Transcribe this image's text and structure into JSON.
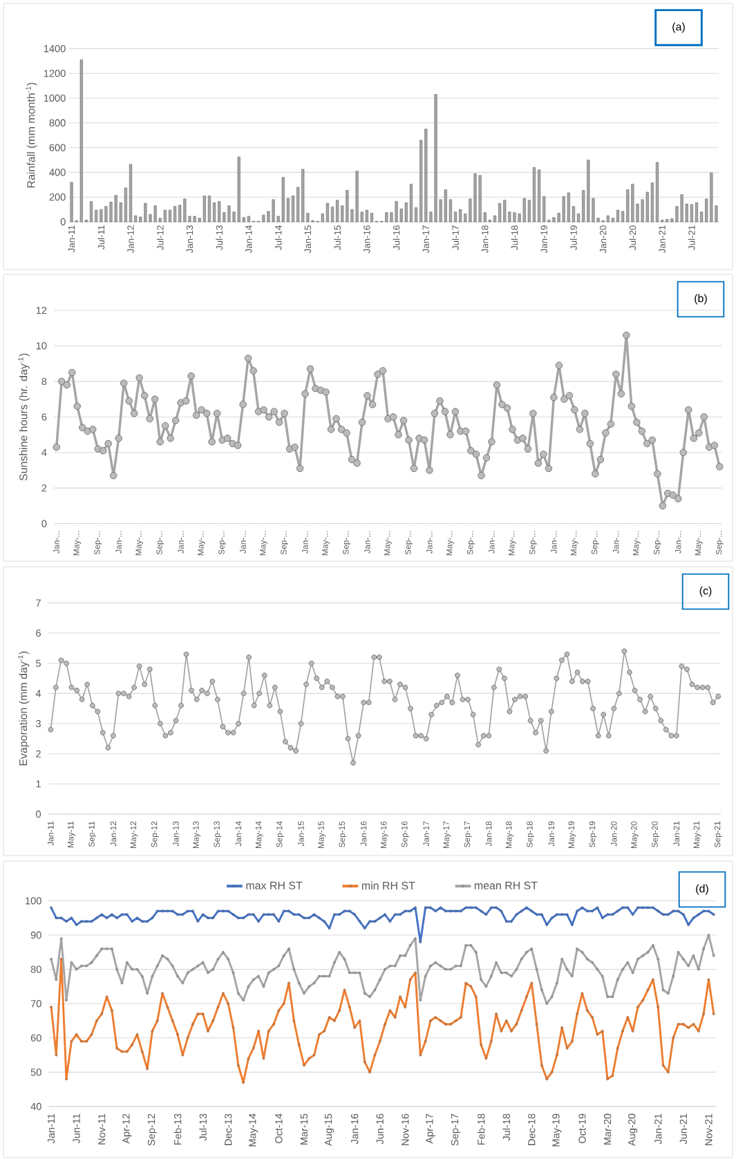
{
  "chart_data": [
    {
      "type": "bar",
      "ylabel": "Rainfall (mm month$^{-1}$)",
      "annotations": [
        "(a)"
      ],
      "grid": "y",
      "color": "#a5a5a5",
      "ylim": [
        0,
        1400
      ],
      "yticks": [
        0,
        200,
        400,
        600,
        800,
        1000,
        1200,
        1400
      ],
      "categories": [
        "Jan-11",
        null,
        null,
        null,
        null,
        null,
        "Jul-11",
        null,
        null,
        null,
        null,
        null,
        "Jan-12",
        null,
        null,
        null,
        null,
        null,
        "Jul-12",
        null,
        null,
        null,
        null,
        null,
        "Jan-13",
        null,
        null,
        null,
        null,
        null,
        "Jul-13",
        null,
        null,
        null,
        null,
        null,
        "Jan-14",
        null,
        null,
        null,
        null,
        null,
        "Jul-14",
        null,
        null,
        null,
        null,
        null,
        "Jan-15",
        null,
        null,
        null,
        null,
        null,
        "Jul-15",
        null,
        null,
        null,
        null,
        null,
        "Jan-16",
        null,
        null,
        null,
        null,
        null,
        "Jul-16",
        null,
        null,
        null,
        null,
        null,
        "Jan-17",
        null,
        null,
        null,
        null,
        null,
        "Jul-17",
        null,
        null,
        null,
        null,
        null,
        "Jan-18",
        null,
        null,
        null,
        null,
        null,
        "Jul-18",
        null,
        null,
        null,
        null,
        null,
        "Jan-19",
        null,
        null,
        null,
        null,
        null,
        "Jul-19",
        null,
        null,
        null,
        null,
        null,
        "Jan-20",
        null,
        null,
        null,
        null,
        null,
        "Jul-20",
        null,
        null,
        null,
        null,
        null,
        "Jan-21",
        null,
        null,
        null,
        null,
        null,
        "Jul-21",
        null,
        null,
        null,
        null,
        null
      ],
      "values": [
        320,
        10,
        1310,
        15,
        165,
        95,
        100,
        125,
        160,
        215,
        155,
        275,
        465,
        50,
        40,
        150,
        60,
        130,
        30,
        95,
        95,
        125,
        135,
        185,
        45,
        45,
        30,
        210,
        210,
        155,
        165,
        75,
        130,
        80,
        525,
        35,
        45,
        5,
        5,
        55,
        85,
        180,
        45,
        360,
        190,
        210,
        280,
        425,
        70,
        10,
        5,
        65,
        150,
        120,
        175,
        130,
        255,
        100,
        410,
        80,
        95,
        70,
        5,
        5,
        75,
        75,
        165,
        105,
        155,
        305,
        115,
        660,
        750,
        80,
        1030,
        180,
        260,
        180,
        80,
        100,
        65,
        185,
        390,
        375,
        75,
        15,
        50,
        150,
        175,
        80,
        75,
        65,
        190,
        175,
        440,
        420,
        205,
        15,
        35,
        70,
        205,
        235,
        125,
        65,
        255,
        500,
        190,
        30,
        10,
        50,
        30,
        95,
        85,
        260,
        305,
        145,
        180,
        240,
        315,
        480,
        15,
        20,
        25,
        125,
        220,
        145,
        140,
        155,
        80,
        185,
        395,
        130
      ]
    },
    {
      "type": "line",
      "ylabel": "Sunshine hours (hr. day$^{-1}$)",
      "annotations": [
        "(b)"
      ],
      "grid": "y",
      "marker": "circle",
      "color": "#a5a5a5",
      "ylim": [
        0,
        12
      ],
      "yticks": [
        0,
        2,
        4,
        6,
        8,
        10,
        12
      ],
      "categories": [
        "Jan-...",
        null,
        null,
        null,
        "May-...",
        null,
        null,
        null,
        "Sep-...",
        null,
        null,
        null,
        "Jan-...",
        null,
        null,
        null,
        "May-...",
        null,
        null,
        null,
        "Sep-...",
        null,
        null,
        null,
        "Jan-...",
        null,
        null,
        null,
        "May-...",
        null,
        null,
        null,
        "Sep-...",
        null,
        null,
        null,
        "Jan-...",
        null,
        null,
        null,
        "May-...",
        null,
        null,
        null,
        "Sep-...",
        null,
        null,
        null,
        "Jan-...",
        null,
        null,
        null,
        "May-...",
        null,
        null,
        null,
        "Sep-...",
        null,
        null,
        null,
        "Jan-...",
        null,
        null,
        null,
        "May-...",
        null,
        null,
        null,
        "Sep-...",
        null,
        null,
        null,
        "Jan-...",
        null,
        null,
        null,
        "May-...",
        null,
        null,
        null,
        "Sep-...",
        null,
        null,
        null,
        "Jan-...",
        null,
        null,
        null,
        "May-...",
        null,
        null,
        null,
        "Sep-...",
        null,
        null,
        null,
        "Jan-...",
        null,
        null,
        null,
        "May-...",
        null,
        null,
        null,
        "Sep-...",
        null,
        null,
        null,
        "Jan-...",
        null,
        null,
        null,
        "May-...",
        null,
        null,
        null,
        "Sep-...",
        null,
        null,
        null,
        "Jan-...",
        null,
        null,
        null,
        "May-...",
        null,
        null,
        null,
        "Sep-..."
      ],
      "values": [
        4.3,
        8.0,
        7.8,
        8.5,
        6.6,
        5.4,
        5.2,
        5.3,
        4.2,
        4.1,
        4.5,
        2.7,
        4.8,
        7.9,
        6.9,
        6.2,
        8.2,
        7.2,
        5.9,
        7.0,
        4.6,
        5.5,
        4.8,
        5.8,
        6.8,
        6.9,
        8.3,
        6.1,
        6.4,
        6.2,
        4.6,
        6.2,
        4.7,
        4.8,
        4.5,
        4.4,
        6.7,
        9.3,
        8.6,
        6.3,
        6.4,
        6.0,
        6.3,
        5.7,
        6.2,
        4.2,
        4.3,
        3.1,
        7.3,
        8.7,
        7.6,
        7.5,
        7.4,
        5.3,
        5.9,
        5.3,
        5.1,
        3.6,
        3.4,
        5.7,
        7.2,
        6.7,
        8.4,
        8.6,
        5.9,
        6.0,
        5.0,
        5.8,
        4.7,
        3.1,
        4.8,
        4.7,
        3.0,
        6.2,
        6.9,
        6.3,
        5.0,
        6.3,
        5.2,
        5.2,
        4.1,
        3.9,
        2.7,
        3.7,
        4.6,
        7.8,
        6.7,
        6.5,
        5.3,
        4.7,
        4.8,
        4.2,
        6.2,
        3.4,
        3.9,
        3.1,
        7.1,
        8.9,
        7.0,
        7.2,
        6.4,
        5.3,
        6.2,
        4.5,
        2.8,
        3.6,
        5.1,
        5.6,
        8.4,
        7.3,
        10.6,
        6.6,
        5.7,
        5.2,
        4.5,
        4.7,
        2.8,
        1.0,
        1.7,
        1.6,
        1.4,
        4.0,
        6.4,
        4.8,
        5.1,
        6.0,
        4.3,
        4.4,
        3.2
      ]
    },
    {
      "type": "line",
      "ylabel": "Evaporation (mm day$^{-1}$)",
      "annotations": [
        "(c)"
      ],
      "grid": "y",
      "marker": "circle",
      "color": "#a5a5a5",
      "ylim": [
        0,
        7
      ],
      "yticks": [
        0,
        1,
        2,
        3,
        4,
        5,
        6,
        7
      ],
      "categories": [
        "Jan-11",
        null,
        null,
        null,
        "May-11",
        null,
        null,
        null,
        "Sep-11",
        null,
        null,
        null,
        "Jan-12",
        null,
        null,
        null,
        "May-12",
        null,
        null,
        null,
        "Sep-12",
        null,
        null,
        null,
        "Jan-13",
        null,
        null,
        null,
        "May-13",
        null,
        null,
        null,
        "Sep-13",
        null,
        null,
        null,
        "Jan-14",
        null,
        null,
        null,
        "May-14",
        null,
        null,
        null,
        "Sep-14",
        null,
        null,
        null,
        "Jan-15",
        null,
        null,
        null,
        "May-15",
        null,
        null,
        null,
        "Sep-15",
        null,
        null,
        null,
        "Jan-16",
        null,
        null,
        null,
        "May-16",
        null,
        null,
        null,
        "Sep-16",
        null,
        null,
        null,
        "Jan-17",
        null,
        null,
        null,
        "May-17",
        null,
        null,
        null,
        "Sep-17",
        null,
        null,
        null,
        "Jan-18",
        null,
        null,
        null,
        "May-18",
        null,
        null,
        null,
        "Sep-18",
        null,
        null,
        null,
        "Jan-19",
        null,
        null,
        null,
        "May-19",
        null,
        null,
        null,
        "Sep-19",
        null,
        null,
        null,
        "Jan-20",
        null,
        null,
        null,
        "May-20",
        null,
        null,
        null,
        "Sep-20",
        null,
        null,
        null,
        "Jan-21",
        null,
        null,
        null,
        "May-21",
        null,
        null,
        null,
        "Sep-21"
      ],
      "values": [
        2.8,
        4.2,
        5.1,
        5.0,
        4.2,
        4.1,
        3.8,
        4.3,
        3.6,
        3.4,
        2.7,
        2.2,
        2.6,
        4.0,
        4.0,
        3.9,
        4.2,
        4.9,
        4.3,
        4.8,
        3.6,
        3.0,
        2.6,
        2.7,
        3.1,
        3.6,
        5.3,
        4.1,
        3.8,
        4.1,
        4.0,
        4.4,
        3.8,
        2.9,
        2.7,
        2.7,
        3.0,
        4.0,
        5.2,
        3.6,
        4.0,
        4.6,
        3.6,
        4.2,
        3.4,
        2.4,
        2.2,
        2.1,
        3.0,
        4.3,
        5.0,
        4.5,
        4.2,
        4.4,
        4.2,
        3.9,
        3.9,
        2.5,
        1.7,
        2.6,
        3.7,
        3.7,
        5.2,
        5.2,
        4.4,
        4.4,
        3.8,
        4.3,
        4.2,
        3.5,
        2.6,
        2.6,
        2.5,
        3.3,
        3.6,
        3.7,
        3.9,
        3.7,
        4.6,
        3.8,
        3.8,
        3.3,
        2.3,
        2.6,
        2.6,
        4.2,
        4.8,
        4.5,
        3.4,
        3.8,
        3.9,
        3.9,
        3.1,
        2.7,
        3.1,
        2.1,
        3.4,
        4.5,
        5.1,
        5.3,
        4.4,
        4.7,
        4.4,
        4.4,
        3.5,
        2.6,
        3.3,
        2.6,
        3.5,
        4.0,
        5.4,
        4.7,
        4.1,
        3.8,
        3.4,
        3.9,
        3.5,
        3.1,
        2.8,
        2.6,
        2.6,
        4.9,
        4.8,
        4.3,
        4.2,
        4.2,
        4.2,
        3.7,
        3.9
      ]
    },
    {
      "type": "line",
      "annotations": [
        "(d)"
      ],
      "grid": "y",
      "marker": "circle",
      "legend": "top",
      "ylim": [
        40,
        100
      ],
      "yticks": [
        40,
        50,
        60,
        70,
        80,
        90,
        100
      ],
      "categories": [
        "Jan-11",
        null,
        null,
        null,
        null,
        "Jun-11",
        null,
        null,
        null,
        null,
        "Nov-11",
        null,
        null,
        null,
        null,
        "Apr-12",
        null,
        null,
        null,
        null,
        "Sep-12",
        null,
        null,
        null,
        null,
        "Feb-13",
        null,
        null,
        null,
        null,
        "Jul-13",
        null,
        null,
        null,
        null,
        "Dec-13",
        null,
        null,
        null,
        null,
        "May-14",
        null,
        null,
        null,
        null,
        "Oct-14",
        null,
        null,
        null,
        null,
        "Mar-15",
        null,
        null,
        null,
        null,
        "Aug-15",
        null,
        null,
        null,
        null,
        "Jan-16",
        null,
        null,
        null,
        null,
        "Jun-16",
        null,
        null,
        null,
        null,
        "Nov-16",
        null,
        null,
        null,
        null,
        "Apr-17",
        null,
        null,
        null,
        null,
        "Sep-17",
        null,
        null,
        null,
        null,
        "Feb-18",
        null,
        null,
        null,
        null,
        "Jul-18",
        null,
        null,
        null,
        null,
        "Dec-18",
        null,
        null,
        null,
        null,
        "May-19",
        null,
        null,
        null,
        null,
        "Oct-19",
        null,
        null,
        null,
        null,
        "Mar-20",
        null,
        null,
        null,
        null,
        "Aug-20",
        null,
        null,
        null,
        null,
        "Jan-21",
        null,
        null,
        null,
        null,
        "Jun-21",
        null,
        null,
        null,
        null,
        "Nov-21",
        null
      ],
      "series": [
        {
          "name": "max RH ST",
          "color": "#4472c4",
          "values": [
            98,
            95,
            95,
            94,
            95,
            93,
            94,
            94,
            94,
            95,
            96,
            95,
            96,
            95,
            96,
            96,
            94,
            95,
            94,
            94,
            95,
            97,
            97,
            97,
            97,
            96,
            96,
            97,
            97,
            94,
            96,
            95,
            95,
            97,
            97,
            97,
            96,
            95,
            95,
            96,
            96,
            94,
            96,
            96,
            96,
            94,
            97,
            97,
            96,
            96,
            95,
            95,
            96,
            95,
            94,
            92,
            96,
            96,
            97,
            97,
            96,
            94,
            92,
            94,
            94,
            95,
            96,
            94,
            96,
            96,
            97,
            97,
            98,
            88,
            98,
            98,
            97,
            98,
            97,
            97,
            97,
            97,
            98,
            98,
            98,
            97,
            96,
            98,
            98,
            97,
            94,
            94,
            96,
            97,
            98,
            97,
            96,
            96,
            93,
            95,
            96,
            96,
            96,
            93,
            97,
            98,
            97,
            97,
            98,
            95,
            96,
            96,
            97,
            98,
            98,
            96,
            98,
            98,
            98,
            98,
            97,
            96,
            96,
            97,
            97,
            96,
            93,
            95,
            96,
            97,
            97,
            96
          ]
        },
        {
          "name": "min RH ST",
          "color": "#ed7d31",
          "values": [
            69,
            55,
            83,
            48,
            59,
            61,
            59,
            59,
            61,
            65,
            67,
            72,
            68,
            57,
            56,
            56,
            58,
            61,
            56,
            51,
            62,
            65,
            73,
            69,
            65,
            61,
            55,
            60,
            64,
            67,
            67,
            62,
            65,
            69,
            73,
            70,
            63,
            52,
            47,
            54,
            57,
            62,
            54,
            62,
            64,
            68,
            70,
            76,
            65,
            58,
            52,
            54,
            55,
            61,
            62,
            66,
            65,
            68,
            74,
            69,
            63,
            65,
            53,
            50,
            55,
            59,
            64,
            68,
            66,
            72,
            69,
            77,
            79,
            55,
            59,
            65,
            66,
            65,
            64,
            64,
            65,
            66,
            76,
            75,
            72,
            58,
            54,
            59,
            67,
            62,
            65,
            62,
            64,
            68,
            72,
            76,
            64,
            52,
            48,
            50,
            55,
            63,
            57,
            59,
            67,
            73,
            68,
            66,
            61,
            62,
            48,
            49,
            57,
            62,
            66,
            62,
            69,
            71,
            74,
            77,
            69,
            52,
            50,
            60,
            64,
            64,
            63,
            64,
            62,
            67,
            77,
            67
          ]
        },
        {
          "name": "mean RH ST",
          "color": "#a5a5a5",
          "values": [
            83,
            77,
            89,
            71,
            82,
            80,
            81,
            81,
            82,
            84,
            86,
            86,
            86,
            80,
            76,
            82,
            80,
            80,
            78,
            73,
            78,
            81,
            84,
            83,
            81,
            78,
            76,
            79,
            80,
            81,
            82,
            79,
            80,
            83,
            85,
            83,
            79,
            73,
            71,
            75,
            77,
            78,
            75,
            79,
            80,
            81,
            84,
            86,
            80,
            76,
            73,
            75,
            76,
            78,
            78,
            78,
            82,
            85,
            83,
            79,
            79,
            79,
            73,
            72,
            74,
            77,
            80,
            81,
            81,
            84,
            84,
            87,
            89,
            71,
            78,
            81,
            82,
            81,
            80,
            80,
            81,
            81,
            87,
            87,
            85,
            77,
            75,
            78,
            82,
            79,
            79,
            78,
            80,
            83,
            85,
            86,
            80,
            74,
            70,
            72,
            76,
            83,
            80,
            78,
            86,
            85,
            83,
            82,
            80,
            78,
            72,
            72,
            77,
            80,
            82,
            79,
            83,
            84,
            85,
            87,
            83,
            74,
            73,
            78,
            85,
            83,
            81,
            84,
            80,
            86,
            90,
            84
          ]
        }
      ]
    }
  ]
}
